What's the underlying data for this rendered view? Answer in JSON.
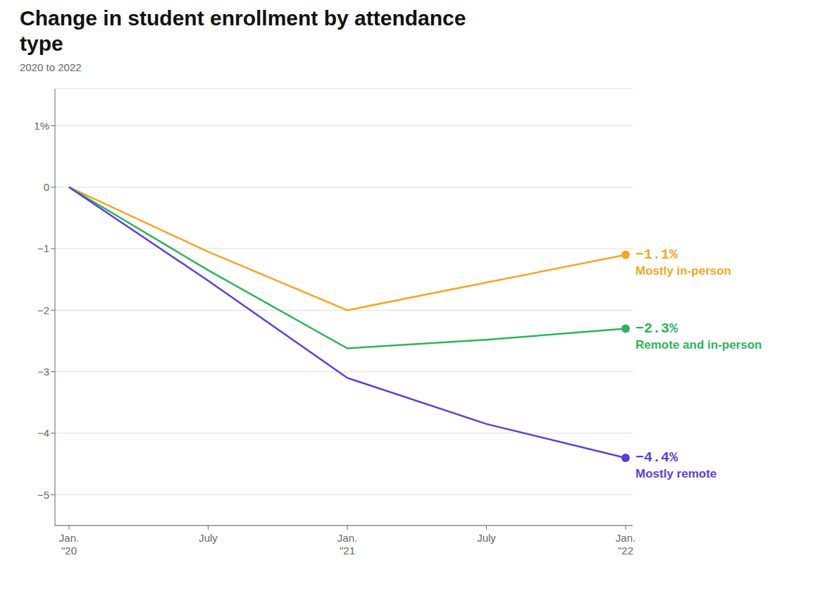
{
  "chart_data": {
    "type": "line",
    "title": "Change in student enrollment by attendance\ntype",
    "subtitle": "2020 to 2022",
    "categories": [
      "Jan.\n\"20",
      "July",
      "Jan.\n\"21",
      "July",
      "Jan.\n\"22"
    ],
    "series": [
      {
        "name": "Mostly in-person",
        "color": "#F5A623",
        "values": [
          0,
          -1.05,
          -2.0,
          -1.55,
          -1.1
        ],
        "value_labels": [
          null,
          null,
          null,
          null,
          "−1.1%"
        ]
      },
      {
        "name": "Remote and in-person",
        "color": "#2DB35D",
        "values": [
          0,
          -1.35,
          -2.62,
          -2.48,
          -2.3
        ],
        "value_labels": [
          null,
          null,
          null,
          null,
          "−2.3%"
        ]
      },
      {
        "name": "Mostly remote",
        "color": "#5B3FD4",
        "values": [
          0,
          -1.52,
          -3.1,
          -3.85,
          -4.4
        ],
        "value_labels": [
          null,
          null,
          null,
          null,
          "−4.4%"
        ]
      }
    ],
    "ylim": [
      -5.5,
      1.6
    ],
    "yticks": [
      {
        "value": 1,
        "label": "1%"
      },
      0,
      {
        "value": -1,
        "label": "−1"
      },
      {
        "value": -2,
        "label": "−2"
      },
      {
        "value": -3,
        "label": "−3"
      },
      {
        "value": -4,
        "label": "−4"
      },
      {
        "value": -5,
        "label": "−5"
      }
    ],
    "grid": true
  }
}
